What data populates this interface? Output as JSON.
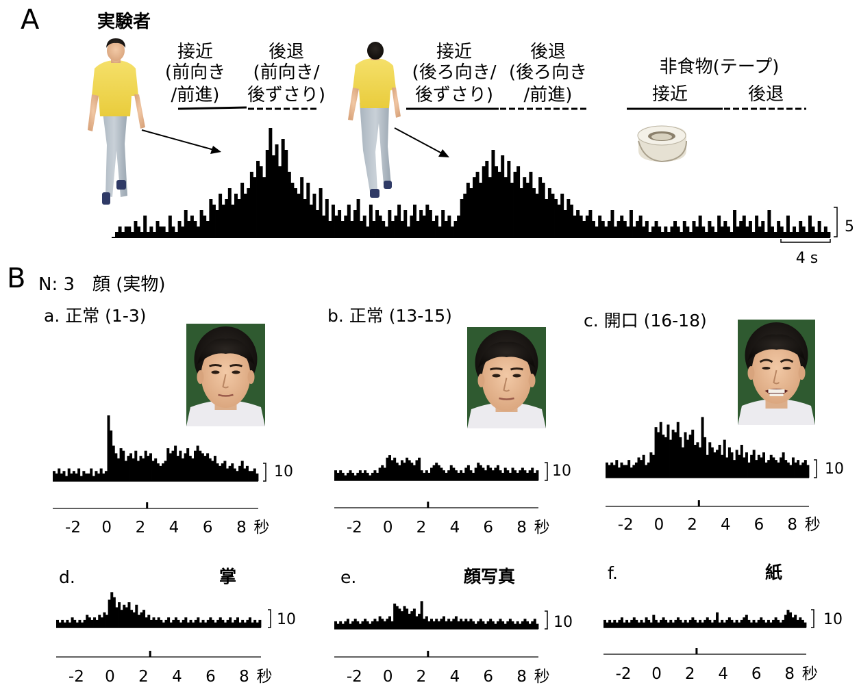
{
  "panelA": {
    "letter": "A",
    "subject_label": "実験者",
    "conditions": [
      {
        "lines": [
          "接近",
          "(前向き",
          "/前進)"
        ]
      },
      {
        "lines": [
          "後退",
          "(前向き/",
          "後ずさり)"
        ]
      },
      {
        "lines": [
          "接近",
          "(後ろ向き/",
          "後ずさり)"
        ]
      },
      {
        "lines": [
          "後退",
          "(後ろ向き",
          "/前進)"
        ]
      }
    ],
    "nonfood_title": "非食物(テープ)",
    "nonfood_approach": "接近",
    "nonfood_retreat": "後退",
    "scale_value": "5",
    "time_scale": "4 s",
    "icons": [
      "person-front-icon",
      "person-back-icon",
      "tape-roll-icon"
    ]
  },
  "panelB": {
    "letter": "B",
    "header": "N: 3　顔 (実物)",
    "tick_labels": [
      "-2",
      "0",
      "2",
      "4",
      "6",
      "8"
    ],
    "time_unit": "秒",
    "subpanels": [
      {
        "id": "a",
        "title": "a. 正常 (1-3)",
        "scale": "10",
        "image": "face-neutral-photo"
      },
      {
        "id": "b",
        "title": "b. 正常 (13-15)",
        "scale": "10",
        "image": "face-neutral-photo"
      },
      {
        "id": "c",
        "title": "c. 開口 (16-18)",
        "scale": "10",
        "image": "face-grimace-photo"
      },
      {
        "id": "d",
        "letter": "d.",
        "stimulus": "掌",
        "scale": "10"
      },
      {
        "id": "e",
        "letter": "e.",
        "stimulus": "顔写真",
        "scale": "10"
      },
      {
        "id": "f",
        "letter": "f.",
        "stimulus": "紙",
        "scale": "10"
      }
    ]
  },
  "chart_data": [
    {
      "id": "A",
      "type": "bar",
      "description_units": "spikes per bin vs time, scale bar 5",
      "x_range_s": [
        0,
        66.5
      ],
      "ylim": [
        0,
        20
      ],
      "values": [
        1,
        2,
        1,
        2,
        2,
        1,
        3,
        2,
        1,
        4,
        1,
        2,
        1,
        3,
        2,
        2,
        1,
        4,
        2,
        1,
        3,
        2,
        5,
        3,
        4,
        3,
        2,
        5,
        4,
        3,
        7,
        6,
        5,
        8,
        6,
        7,
        9,
        6,
        8,
        7,
        10,
        8,
        9,
        12,
        11,
        14,
        13,
        11,
        16,
        20,
        15,
        17,
        13,
        18,
        16,
        12,
        10,
        9,
        8,
        11,
        7,
        10,
        6,
        8,
        5,
        9,
        4,
        7,
        3,
        6,
        4,
        5,
        3,
        4,
        6,
        3,
        5,
        7,
        3,
        4,
        2,
        6,
        3,
        5,
        4,
        3,
        2,
        5,
        3,
        4,
        6,
        3,
        5,
        2,
        4,
        6,
        3,
        5,
        4,
        6,
        5,
        3,
        4,
        2,
        5,
        3,
        4,
        2,
        3,
        4,
        7,
        8,
        10,
        9,
        11,
        12,
        10,
        13,
        14,
        11,
        16,
        13,
        12,
        15,
        11,
        14,
        10,
        12,
        13,
        9,
        11,
        10,
        12,
        9,
        8,
        11,
        10,
        7,
        9,
        8,
        7,
        6,
        8,
        5,
        7,
        6,
        4,
        5,
        4,
        3,
        4,
        5,
        3,
        2,
        4,
        3,
        2,
        3,
        5,
        2,
        3,
        4,
        3,
        2,
        5,
        2,
        3,
        4,
        2,
        3,
        1,
        2,
        3,
        2,
        1,
        2,
        1,
        2,
        3,
        2,
        1,
        3,
        2,
        1,
        3,
        2,
        4,
        2,
        1,
        3,
        2,
        1,
        4,
        2,
        3,
        2,
        1,
        5,
        2,
        3,
        4,
        2,
        3,
        1,
        4,
        2,
        3,
        1,
        5,
        2,
        1,
        3,
        2,
        1,
        4,
        1,
        2,
        1,
        3,
        2,
        1,
        4,
        2,
        1,
        3,
        1,
        2,
        1
      ]
    },
    {
      "id": "a",
      "type": "bar",
      "x_range_s": [
        -3.2,
        9.0
      ],
      "ylim": [
        0,
        26
      ],
      "values": [
        4,
        3,
        5,
        3,
        4,
        2,
        5,
        3,
        4,
        3,
        5,
        2,
        4,
        3,
        3,
        5,
        2,
        4,
        3,
        5,
        3,
        4,
        26,
        20,
        14,
        11,
        9,
        13,
        12,
        8,
        10,
        11,
        9,
        12,
        8,
        10,
        9,
        12,
        10,
        11,
        8,
        9,
        7,
        6,
        7,
        8,
        13,
        11,
        12,
        14,
        10,
        12,
        9,
        11,
        13,
        10,
        9,
        12,
        14,
        12,
        11,
        10,
        11,
        9,
        8,
        10,
        7,
        6,
        7,
        8,
        5,
        6,
        7,
        5,
        4,
        6,
        8,
        5,
        6,
        4,
        4,
        5,
        3
      ]
    },
    {
      "id": "b",
      "type": "bar",
      "x_range_s": [
        -3.2,
        9.0
      ],
      "ylim": [
        0,
        26
      ],
      "values": [
        4,
        3,
        4,
        3,
        2,
        3,
        4,
        3,
        2,
        3,
        4,
        3,
        4,
        3,
        2,
        3,
        4,
        3,
        5,
        6,
        5,
        9,
        10,
        8,
        9,
        7,
        6,
        8,
        7,
        9,
        8,
        7,
        6,
        8,
        9,
        4,
        3,
        4,
        3,
        5,
        6,
        7,
        6,
        5,
        4,
        3,
        4,
        6,
        5,
        4,
        3,
        4,
        3,
        5,
        6,
        4,
        3,
        5,
        7,
        6,
        5,
        4,
        6,
        5,
        4,
        5,
        6,
        4,
        3,
        5,
        4,
        3,
        5,
        4,
        3,
        4,
        5,
        4,
        3,
        4,
        5,
        3,
        4
      ]
    },
    {
      "id": "c",
      "type": "bar",
      "x_range_s": [
        -3.2,
        9.0
      ],
      "ylim": [
        0,
        26
      ],
      "values": [
        6,
        5,
        6,
        5,
        7,
        4,
        6,
        5,
        5,
        7,
        4,
        5,
        6,
        8,
        7,
        9,
        5,
        6,
        10,
        9,
        20,
        18,
        22,
        17,
        16,
        21,
        15,
        19,
        18,
        22,
        16,
        12,
        18,
        15,
        17,
        19,
        13,
        14,
        12,
        24,
        16,
        9,
        14,
        12,
        10,
        11,
        13,
        9,
        15,
        8,
        12,
        10,
        7,
        11,
        9,
        13,
        8,
        10,
        6,
        9,
        11,
        7,
        9,
        8,
        10,
        6,
        7,
        9,
        8,
        7,
        6,
        8,
        10,
        7,
        6,
        5,
        8,
        6,
        7,
        5,
        6,
        7,
        5
      ]
    },
    {
      "id": "d",
      "type": "bar",
      "x_range_s": [
        -3.2,
        9.0
      ],
      "ylim": [
        0,
        26
      ],
      "values": [
        3,
        2,
        3,
        2,
        3,
        2,
        4,
        3,
        2,
        3,
        2,
        3,
        5,
        4,
        3,
        4,
        3,
        5,
        4,
        6,
        5,
        11,
        14,
        12,
        8,
        10,
        7,
        9,
        8,
        10,
        7,
        6,
        9,
        5,
        6,
        7,
        4,
        5,
        3,
        4,
        3,
        4,
        3,
        2,
        3,
        4,
        2,
        3,
        4,
        3,
        2,
        3,
        4,
        2,
        3,
        2,
        3,
        4,
        2,
        3,
        2,
        3,
        4,
        3,
        2,
        3,
        4,
        3,
        2,
        3,
        4,
        2,
        3,
        4,
        2,
        3,
        2,
        3,
        4,
        2,
        3,
        2,
        3
      ]
    },
    {
      "id": "e",
      "type": "bar",
      "x_range_s": [
        -3.2,
        9.0
      ],
      "ylim": [
        0,
        26
      ],
      "values": [
        3,
        2,
        3,
        2,
        3,
        4,
        2,
        3,
        4,
        3,
        2,
        3,
        4,
        3,
        2,
        3,
        4,
        3,
        5,
        4,
        3,
        4,
        5,
        3,
        10,
        9,
        8,
        7,
        9,
        8,
        6,
        7,
        8,
        5,
        6,
        11,
        4,
        5,
        3,
        4,
        3,
        4,
        3,
        4,
        5,
        3,
        4,
        3,
        4,
        5,
        3,
        4,
        3,
        4,
        3,
        4,
        3,
        2,
        3,
        4,
        3,
        2,
        3,
        4,
        3,
        2,
        3,
        4,
        3,
        2,
        3,
        4,
        3,
        2,
        3,
        2,
        3,
        4,
        3,
        2,
        3,
        4,
        2
      ]
    },
    {
      "id": "f",
      "type": "bar",
      "x_range_s": [
        -3.2,
        9.0
      ],
      "ylim": [
        0,
        26
      ],
      "values": [
        3,
        2,
        3,
        2,
        3,
        2,
        3,
        4,
        2,
        3,
        2,
        3,
        4,
        3,
        2,
        3,
        2,
        4,
        3,
        2,
        5,
        3,
        2,
        3,
        4,
        3,
        2,
        3,
        2,
        3,
        4,
        3,
        2,
        3,
        2,
        3,
        4,
        3,
        2,
        3,
        2,
        3,
        4,
        3,
        2,
        3,
        6,
        2,
        3,
        2,
        3,
        4,
        3,
        2,
        3,
        2,
        3,
        4,
        5,
        3,
        2,
        3,
        2,
        3,
        4,
        3,
        2,
        3,
        2,
        3,
        4,
        3,
        2,
        3,
        5,
        7,
        6,
        4,
        5,
        3,
        4,
        3,
        2
      ]
    }
  ]
}
